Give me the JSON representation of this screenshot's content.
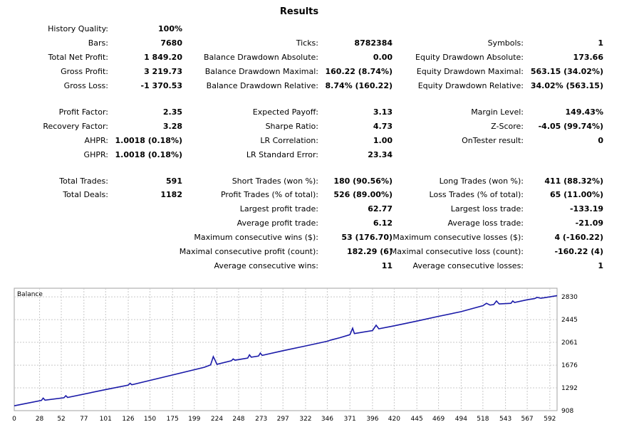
{
  "title": "Results",
  "history_quality": {
    "label": "History Quality:",
    "value": "100%"
  },
  "columns": [
    {
      "rows": [
        {
          "row": 1,
          "label": "Bars:",
          "value": "7680"
        },
        {
          "row": 2,
          "label": "Total Net Profit:",
          "value": "1 849.20"
        },
        {
          "row": 3,
          "label": "Gross Profit:",
          "value": "3 219.73"
        },
        {
          "row": 4,
          "label": "Gross Loss:",
          "value": "-1 370.53"
        },
        {
          "row": 6,
          "label": "Profit Factor:",
          "value": "2.35"
        },
        {
          "row": 7,
          "label": "Recovery Factor:",
          "value": "3.28"
        },
        {
          "row": 8,
          "label": "AHPR:",
          "value": "1.0018 (0.18%)"
        },
        {
          "row": 9,
          "label": "GHPR:",
          "value": "1.0018 (0.18%)"
        },
        {
          "row": 11,
          "label": "Total Trades:",
          "value": "591"
        },
        {
          "row": 12,
          "label": "Total Deals:",
          "value": "1182"
        }
      ]
    },
    {
      "rows": [
        {
          "row": 1,
          "label": "Ticks:",
          "value": "8782384"
        },
        {
          "row": 2,
          "label": "Balance Drawdown Absolute:",
          "value": "0.00"
        },
        {
          "row": 3,
          "label": "Balance Drawdown Maximal:",
          "value": "160.22 (8.74%)"
        },
        {
          "row": 4,
          "label": "Balance Drawdown Relative:",
          "value": "8.74% (160.22)"
        },
        {
          "row": 6,
          "label": "Expected Payoff:",
          "value": "3.13"
        },
        {
          "row": 7,
          "label": "Sharpe Ratio:",
          "value": "4.73"
        },
        {
          "row": 8,
          "label": "LR Correlation:",
          "value": "1.00"
        },
        {
          "row": 9,
          "label": "LR Standard Error:",
          "value": "23.34"
        },
        {
          "row": 11,
          "label": "Short Trades (won %):",
          "value": "180 (90.56%)"
        },
        {
          "row": 12,
          "label": "Profit Trades (% of total):",
          "value": "526 (89.00%)"
        },
        {
          "row": 13,
          "label": "Largest profit trade:",
          "value": "62.77"
        },
        {
          "row": 14,
          "label": "Average profit trade:",
          "value": "6.12"
        },
        {
          "row": 15,
          "label": "Maximum consecutive wins ($):",
          "value": "53 (176.70)"
        },
        {
          "row": 16,
          "label": "Maximal consecutive profit (count):",
          "value": "182.29 (6)"
        },
        {
          "row": 17,
          "label": "Average consecutive wins:",
          "value": "11"
        }
      ]
    },
    {
      "rows": [
        {
          "row": 1,
          "label": "Symbols:",
          "value": "1"
        },
        {
          "row": 2,
          "label": "Equity Drawdown Absolute:",
          "value": "173.66"
        },
        {
          "row": 3,
          "label": "Equity Drawdown Maximal:",
          "value": "563.15 (34.02%)"
        },
        {
          "row": 4,
          "label": "Equity Drawdown Relative:",
          "value": "34.02% (563.15)"
        },
        {
          "row": 6,
          "label": "Margin Level:",
          "value": "149.43%"
        },
        {
          "row": 7,
          "label": "Z-Score:",
          "value": "-4.05 (99.74%)"
        },
        {
          "row": 8,
          "label": "OnTester result:",
          "value": "0"
        },
        {
          "row": 11,
          "label": "Long Trades (won %):",
          "value": "411 (88.32%)"
        },
        {
          "row": 12,
          "label": "Loss Trades (% of total):",
          "value": "65 (11.00%)"
        },
        {
          "row": 13,
          "label": "Largest loss trade:",
          "value": "-133.19"
        },
        {
          "row": 14,
          "label": "Average loss trade:",
          "value": "-21.09"
        },
        {
          "row": 15,
          "label": "Maximum consecutive losses ($):",
          "value": "4 (-160.22)"
        },
        {
          "row": 16,
          "label": "Maximal consecutive loss (count):",
          "value": "-160.22 (4)"
        },
        {
          "row": 17,
          "label": "Average consecutive losses:",
          "value": "1"
        }
      ]
    }
  ],
  "chart_data": {
    "type": "line",
    "title": "Balance",
    "xlabel": "",
    "ylabel": "",
    "x_ticks": [
      0,
      28,
      52,
      77,
      101,
      126,
      150,
      175,
      199,
      224,
      248,
      273,
      297,
      322,
      346,
      371,
      396,
      420,
      445,
      469,
      494,
      518,
      543,
      567,
      592
    ],
    "y_ticks": [
      908,
      1292,
      1676,
      2061,
      2445,
      2830
    ],
    "xlim": [
      0,
      600
    ],
    "ylim": [
      908,
      2975
    ],
    "grid": true,
    "line_color": "#1a1aa8",
    "series": [
      {
        "points": [
          [
            0,
            990
          ],
          [
            30,
            1080
          ],
          [
            32,
            1120
          ],
          [
            34,
            1085
          ],
          [
            55,
            1125
          ],
          [
            57,
            1160
          ],
          [
            59,
            1130
          ],
          [
            100,
            1260
          ],
          [
            126,
            1340
          ],
          [
            128,
            1370
          ],
          [
            130,
            1345
          ],
          [
            175,
            1510
          ],
          [
            210,
            1640
          ],
          [
            217,
            1680
          ],
          [
            220,
            1820
          ],
          [
            222,
            1760
          ],
          [
            224,
            1690
          ],
          [
            240,
            1750
          ],
          [
            242,
            1780
          ],
          [
            244,
            1760
          ],
          [
            258,
            1795
          ],
          [
            260,
            1850
          ],
          [
            262,
            1810
          ],
          [
            270,
            1830
          ],
          [
            272,
            1880
          ],
          [
            274,
            1840
          ],
          [
            297,
            1920
          ],
          [
            322,
            2000
          ],
          [
            346,
            2080
          ],
          [
            350,
            2100
          ],
          [
            360,
            2140
          ],
          [
            371,
            2190
          ],
          [
            374,
            2300
          ],
          [
            376,
            2210
          ],
          [
            396,
            2260
          ],
          [
            400,
            2350
          ],
          [
            403,
            2290
          ],
          [
            420,
            2340
          ],
          [
            445,
            2420
          ],
          [
            469,
            2500
          ],
          [
            494,
            2580
          ],
          [
            518,
            2680
          ],
          [
            522,
            2720
          ],
          [
            526,
            2690
          ],
          [
            530,
            2700
          ],
          [
            533,
            2760
          ],
          [
            536,
            2710
          ],
          [
            549,
            2720
          ],
          [
            551,
            2760
          ],
          [
            553,
            2735
          ],
          [
            567,
            2780
          ],
          [
            575,
            2800
          ],
          [
            578,
            2820
          ],
          [
            582,
            2805
          ],
          [
            600,
            2850
          ]
        ]
      }
    ]
  }
}
